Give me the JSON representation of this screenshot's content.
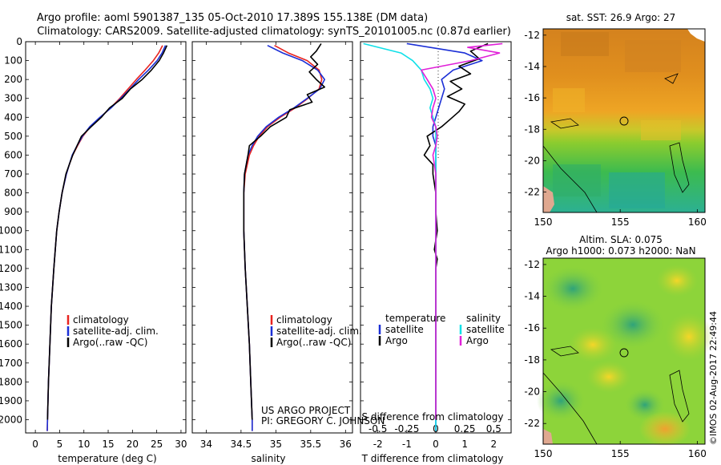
{
  "title": {
    "line1": "Argo profile: aoml 5901387_135 05-Oct-2010 17.389S 155.138E (DM data)",
    "line2": "Climatology: CARS2009. Satellite-adjusted climatology: synTS_20101005.nc (0.87d earlier)"
  },
  "colors": {
    "climatology": "#e8231f",
    "satellite": "#1b2fd6",
    "argo": "#000000",
    "sat_salinity": "#10e0e8",
    "argo_salinity": "#e020d8"
  },
  "depth_ticks": [
    "0",
    "100",
    "200",
    "300",
    "400",
    "500",
    "600",
    "700",
    "800",
    "900",
    "1000",
    "1100",
    "1200",
    "1300",
    "1400",
    "1500",
    "1600",
    "1700",
    "1800",
    "1900",
    "2000"
  ],
  "legend_main": [
    "climatology",
    "satellite-adj. clim.",
    "Argo(..raw -QC)"
  ],
  "legend_diff": {
    "temperature_header": "temperature",
    "salinity_header": "salinity",
    "satellite": "satellite",
    "argo": "Argo"
  },
  "project": {
    "line1": "US ARGO PROJECT",
    "line2": "PI: GREGORY C. JOHNSON"
  },
  "chart_data": [
    {
      "type": "line",
      "name": "temperature",
      "xlabel": "temperature (deg C)",
      "ylabel": "",
      "xlim": [
        -2,
        31
      ],
      "ylim": [
        2070,
        0
      ],
      "xticks": [
        "0",
        "5",
        "10",
        "15",
        "20",
        "25",
        "30"
      ],
      "series": [
        {
          "name": "climatology",
          "color": "#e8231f",
          "depth": [
            20,
            60,
            100,
            150,
            200,
            250,
            300,
            350,
            400,
            450,
            500,
            550,
            600,
            650,
            700,
            800,
            900,
            1000,
            1200,
            1400,
            1600,
            1800,
            2000,
            2060
          ],
          "values": [
            26.2,
            25.4,
            24.3,
            22.6,
            20.8,
            19.1,
            17.4,
            15.5,
            13.4,
            11.3,
            9.8,
            8.7,
            7.7,
            7.0,
            6.4,
            5.5,
            4.9,
            4.4,
            3.8,
            3.3,
            3.0,
            2.7,
            2.5,
            2.45
          ]
        },
        {
          "name": "satellite-adj. clim.",
          "color": "#1b2fd6",
          "depth": [
            20,
            60,
            100,
            150,
            200,
            250,
            300,
            350,
            400,
            450,
            500,
            550,
            600,
            650,
            700,
            800,
            900,
            1000,
            1200,
            1400,
            1600,
            1800,
            2000,
            2060
          ],
          "values": [
            26.8,
            26.1,
            25.1,
            23.3,
            21.3,
            19.5,
            17.6,
            15.6,
            13.3,
            11.2,
            9.7,
            8.6,
            7.6,
            7.0,
            6.4,
            5.5,
            4.9,
            4.4,
            3.8,
            3.3,
            3.0,
            2.7,
            2.5,
            2.45
          ]
        },
        {
          "name": "Argo",
          "color": "#000000",
          "depth": [
            20,
            60,
            100,
            150,
            200,
            250,
            300,
            350,
            400,
            450,
            500,
            550,
            600,
            650,
            700,
            800,
            900,
            1000,
            1200,
            1400,
            1600,
            1800,
            2000
          ],
          "values": [
            27.1,
            26.4,
            25.5,
            23.9,
            22.0,
            19.6,
            17.9,
            15.3,
            13.6,
            11.5,
            9.5,
            8.6,
            7.7,
            7.0,
            6.3,
            5.5,
            4.9,
            4.4,
            3.8,
            3.3,
            3.0,
            2.7,
            2.5
          ]
        }
      ]
    },
    {
      "type": "line",
      "name": "salinity",
      "xlabel": "salinity",
      "xlim": [
        33.8,
        36.1
      ],
      "ylim": [
        2070,
        0
      ],
      "xticks": [
        "34",
        "34.5",
        "35",
        "35.5",
        "36"
      ],
      "series": [
        {
          "name": "climatology",
          "color": "#e8231f",
          "depth": [
            20,
            60,
            100,
            150,
            200,
            250,
            300,
            350,
            400,
            450,
            500,
            550,
            600,
            700,
            800,
            900,
            1000,
            1200,
            1400,
            1600,
            1800,
            2000,
            2060
          ],
          "values": [
            34.98,
            35.18,
            35.45,
            35.62,
            35.66,
            35.62,
            35.46,
            35.28,
            35.06,
            34.88,
            34.76,
            34.68,
            34.62,
            34.56,
            34.54,
            34.54,
            34.54,
            34.56,
            34.59,
            34.62,
            34.64,
            34.66,
            34.66
          ]
        },
        {
          "name": "satellite-adj. clim.",
          "color": "#1b2fd6",
          "depth": [
            20,
            60,
            100,
            150,
            200,
            250,
            300,
            350,
            400,
            450,
            500,
            550,
            600,
            700,
            800,
            900,
            1000,
            1200,
            1400,
            1600,
            1800,
            2000,
            2060
          ],
          "values": [
            34.88,
            35.1,
            35.38,
            35.6,
            35.7,
            35.63,
            35.45,
            35.26,
            35.04,
            34.86,
            34.74,
            34.66,
            34.6,
            34.55,
            34.54,
            34.54,
            34.54,
            34.56,
            34.59,
            34.62,
            34.64,
            34.66,
            34.66
          ]
        },
        {
          "name": "Argo",
          "color": "#000000",
          "depth": [
            10,
            50,
            80,
            120,
            160,
            200,
            240,
            280,
            320,
            360,
            400,
            450,
            500,
            550,
            600,
            700,
            800,
            900,
            1000,
            1200,
            1400,
            1600,
            1800,
            2000
          ],
          "values": [
            35.65,
            35.58,
            35.5,
            35.6,
            35.48,
            35.58,
            35.7,
            35.45,
            35.52,
            35.2,
            35.15,
            34.92,
            34.78,
            34.62,
            34.6,
            34.55,
            34.54,
            34.54,
            34.54,
            34.56,
            34.59,
            34.62,
            34.64,
            34.66
          ]
        }
      ]
    },
    {
      "type": "line",
      "name": "difference from climatology",
      "xlabel_top": "S difference from climatology",
      "xlabel_bottom": "T difference from climatology",
      "xlim": [
        -2.6,
        2.6
      ],
      "ylim": [
        2070,
        0
      ],
      "xticks_T": [
        "-2",
        "-1",
        "0",
        "1",
        "2"
      ],
      "xticks_S": [
        "-0.5",
        "-0.25",
        "0",
        "0.25",
        "0.5"
      ],
      "series": [
        {
          "name": "T satellite",
          "color": "#1b2fd6",
          "depth": [
            10,
            60,
            100,
            150,
            200,
            250,
            300,
            350,
            400,
            450,
            500,
            550,
            600,
            700,
            800,
            1000,
            1200,
            1500,
            1800,
            2060
          ],
          "values": [
            -1.0,
            1.0,
            1.6,
            0.6,
            0.2,
            0.3,
            0.2,
            0.1,
            0.0,
            -0.1,
            -0.1,
            0.0,
            0.0,
            0.0,
            0.0,
            0.0,
            0.0,
            0.0,
            0.0,
            0.0
          ]
        },
        {
          "name": "T Argo",
          "color": "#000000",
          "depth": [
            10,
            50,
            90,
            130,
            170,
            210,
            250,
            290,
            330,
            370,
            410,
            450,
            500,
            550,
            600,
            650,
            700,
            800,
            900,
            1000,
            1100,
            1150,
            1200,
            1400,
            1600,
            1800,
            2000
          ],
          "values": [
            1.8,
            1.2,
            1.5,
            0.8,
            1.2,
            0.5,
            0.9,
            0.4,
            1.0,
            0.8,
            0.5,
            0.2,
            -0.3,
            -0.2,
            -0.4,
            -0.1,
            -0.1,
            0.0,
            0.0,
            0.05,
            -0.05,
            0.05,
            0.0,
            0.0,
            0.0,
            0.0,
            0.0
          ]
        },
        {
          "name": "S satellite",
          "color": "#10e0e8",
          "depth": [
            10,
            60,
            100,
            150,
            200,
            250,
            300,
            350,
            400,
            450,
            500,
            600,
            700,
            800,
            1000,
            1200,
            1500,
            1800,
            2060
          ],
          "values": [
            -2.5,
            -1.2,
            -0.8,
            -0.5,
            -0.4,
            -0.2,
            -0.1,
            -0.2,
            -0.1,
            0.0,
            0.0,
            0.0,
            0.0,
            0.0,
            0.0,
            0.0,
            0.0,
            0.0,
            0.0
          ]
        },
        {
          "name": "S Argo",
          "color": "#e020d8",
          "depth": [
            10,
            30,
            60,
            100,
            150,
            200,
            250,
            300,
            350,
            400,
            450,
            500,
            550,
            600,
            700,
            800,
            900,
            1000,
            1200,
            1400,
            1600,
            1800,
            2000
          ],
          "values": [
            2.3,
            1.1,
            2.2,
            1.2,
            -0.5,
            -0.3,
            -0.1,
            0.0,
            -0.1,
            -0.15,
            0.0,
            0.05,
            0.0,
            -0.1,
            0.0,
            0.0,
            0.0,
            0.0,
            0.0,
            0.0,
            0.0,
            0.0,
            0.0
          ]
        }
      ]
    },
    {
      "type": "heatmap",
      "name": "sat SST map",
      "title": "sat. SST: 26.9 Argo: 27",
      "xticks": [
        "150",
        "155",
        "160"
      ],
      "yticks": [
        "-12",
        "-14",
        "-16",
        "-18",
        "-20",
        "-22"
      ],
      "xlim": [
        150,
        160.5
      ],
      "ylim": [
        -23.3,
        -11.6
      ]
    },
    {
      "type": "heatmap",
      "name": "SLA map",
      "title_line1": "Altim. SLA: 0.075",
      "title_line2": "Argo h1000: 0.073 h2000: NaN",
      "xticks": [
        "150",
        "155",
        "160"
      ],
      "yticks": [
        "-12",
        "-14",
        "-16",
        "-18",
        "-20",
        "-22"
      ],
      "xlim": [
        150,
        160.5
      ],
      "ylim": [
        -23.3,
        -11.6
      ]
    }
  ],
  "footer_stamp": "©IMOS 02-Aug-2017 22:49:44"
}
